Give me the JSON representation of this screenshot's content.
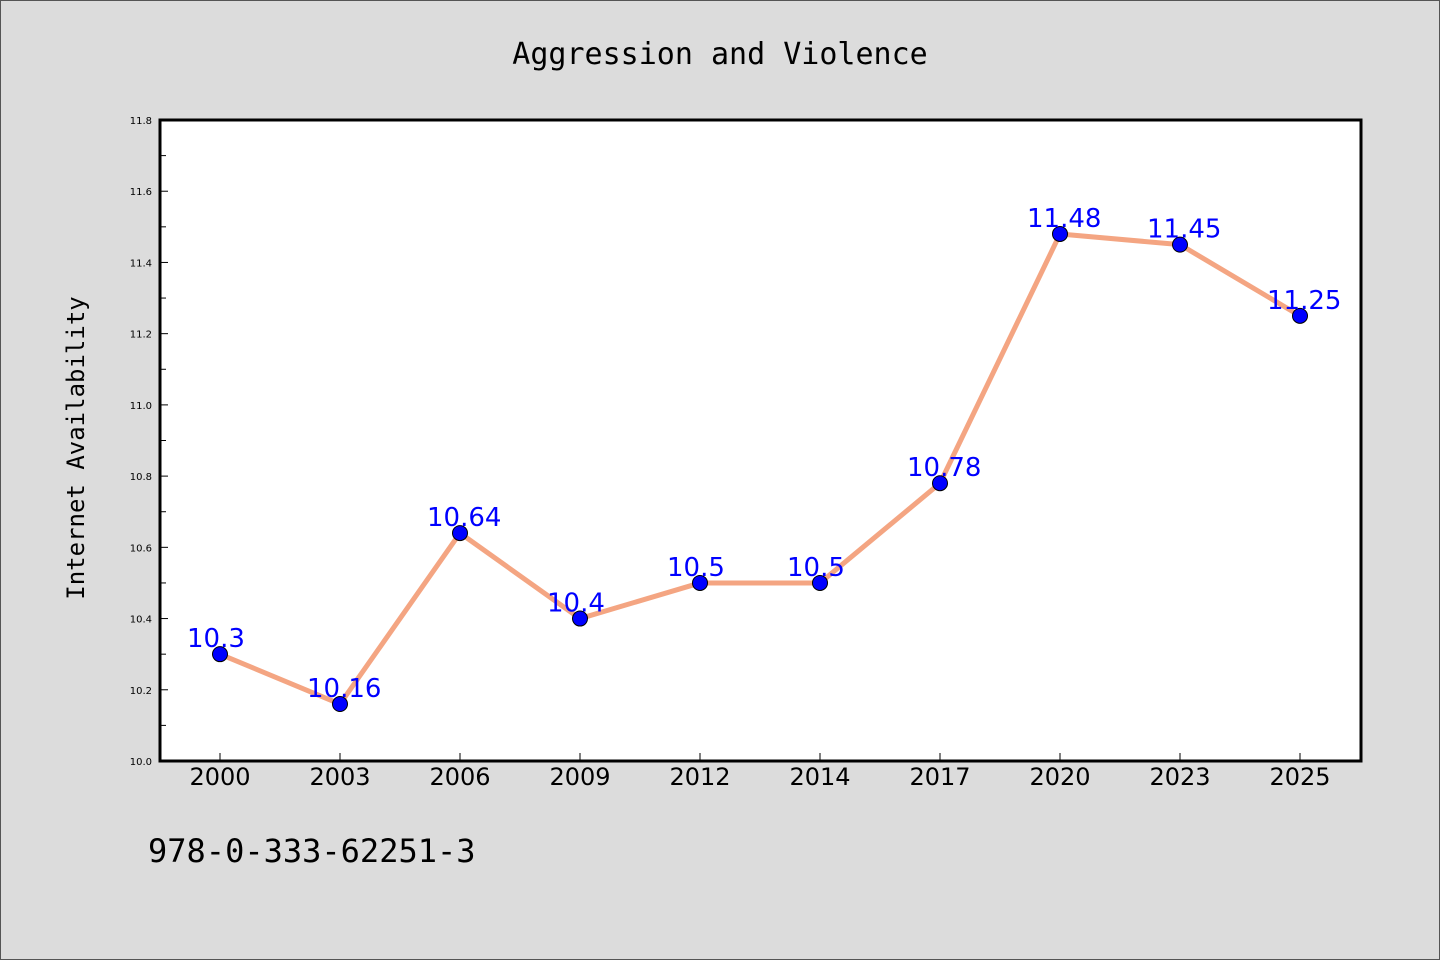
{
  "chart_data": {
    "type": "line",
    "title": "Aggression and Violence",
    "xlabel": "",
    "ylabel": "Internet Availability",
    "categories": [
      "2000",
      "2003",
      "2006",
      "2009",
      "2012",
      "2014",
      "2017",
      "2020",
      "2023",
      "2025"
    ],
    "series": [
      {
        "values": [
          10.3,
          10.16,
          10.64,
          10.4,
          10.5,
          10.5,
          10.78,
          11.48,
          11.45,
          11.25
        ],
        "data_labels": [
          "10.3",
          "10.16",
          "10.64",
          "10.4",
          "10.5",
          "10.5",
          "10.78",
          "11.48",
          "11.45",
          "11.25"
        ]
      }
    ],
    "ylim": [
      10.0,
      11.8
    ],
    "yticks": [
      "10.0",
      "10.2",
      "10.4",
      "10.6",
      "10.8",
      "11.0",
      "11.2",
      "11.4",
      "11.6",
      "11.8"
    ],
    "grid": false,
    "legend": "none",
    "colors": {
      "line": "#f4a582",
      "marker": "#0000ff",
      "label": "#0000ff"
    }
  },
  "footnote": "978-0-333-62251-3"
}
